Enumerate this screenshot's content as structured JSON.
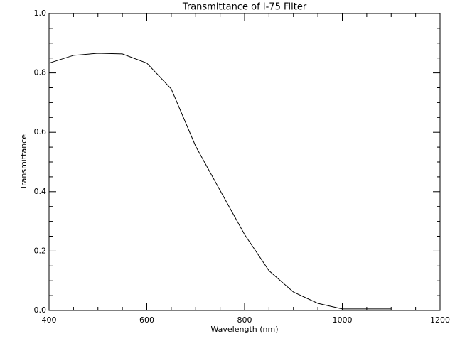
{
  "chart_data": {
    "type": "line",
    "title": "Transmittance of I-75 Filter",
    "x_label": "Wavelength (nm)",
    "y_label": "Transmittance",
    "x": [
      400,
      450,
      500,
      550,
      600,
      650,
      700,
      750,
      800,
      850,
      900,
      950,
      1000,
      1050,
      1100
    ],
    "series": [
      {
        "name": "Transmittance",
        "color": "#000000",
        "values": [
          0.833,
          0.859,
          0.866,
          0.864,
          0.833,
          0.746,
          0.553,
          0.404,
          0.256,
          0.134,
          0.062,
          0.024,
          0.005,
          0.005,
          0.005
        ]
      }
    ],
    "xlim": [
      400,
      1200
    ],
    "xticks": [
      400,
      600,
      800,
      1000,
      1200
    ],
    "ylim": [
      0,
      1
    ],
    "yticks": [
      {
        "value": 0,
        "label": "0.0"
      },
      {
        "value": 0.2,
        "label": "0.2"
      },
      {
        "value": 0.4,
        "label": "0.4"
      },
      {
        "value": 0.6,
        "label": "0.6"
      },
      {
        "value": 0.8,
        "label": "0.8"
      },
      {
        "value": 1,
        "label": "1.0"
      }
    ]
  }
}
